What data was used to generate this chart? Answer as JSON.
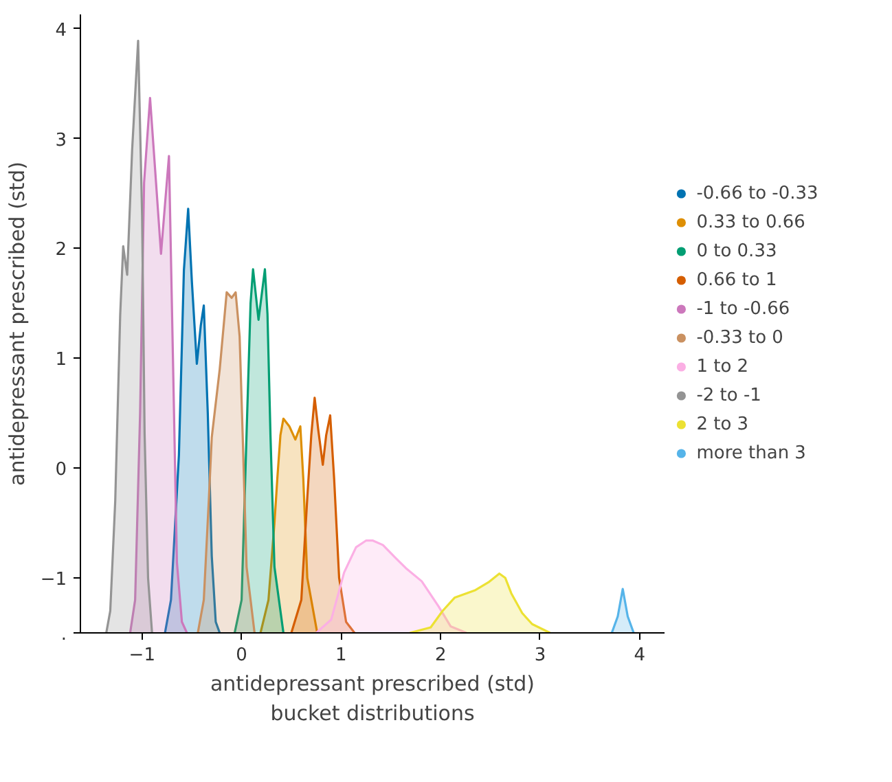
{
  "chart_data": {
    "type": "area",
    "xlabel": "antidepressant prescribed (std)\nbucket distributions",
    "ylabel": "antidepressant prescribed (std)",
    "xlim": [
      -1.62,
      4.25
    ],
    "ylim": [
      -1.5,
      4.13
    ],
    "xticks": [
      -1,
      0,
      1,
      2,
      3,
      4
    ],
    "yticks": [
      4,
      3,
      2,
      1,
      0,
      -1,
      {
        "value": -1.5,
        "label": "."
      }
    ],
    "grid": false,
    "legend": "right",
    "series": [
      {
        "name": "-0.66 to -0.33",
        "color": "#0173b2",
        "x": [
          -0.77,
          -0.71,
          -0.63,
          -0.58,
          -0.537,
          -0.5,
          -0.45,
          -0.41,
          -0.38,
          -0.34,
          -0.3,
          -0.26,
          -0.22
        ],
        "values": [
          -1.5,
          -1.2,
          0.12,
          1.8,
          2.36,
          1.7,
          0.95,
          1.3,
          1.48,
          0.5,
          -0.8,
          -1.4,
          -1.5
        ]
      },
      {
        "name": "0.33 to 0.66",
        "color": "#de8f05",
        "x": [
          0.19,
          0.27,
          0.33,
          0.36,
          0.39,
          0.42,
          0.48,
          0.54,
          0.59,
          0.62,
          0.66,
          0.76
        ],
        "values": [
          -1.5,
          -1.2,
          -0.5,
          -0.08,
          0.3,
          0.45,
          0.38,
          0.26,
          0.38,
          -0.1,
          -1.0,
          -1.5
        ]
      },
      {
        "name": "0 to 0.33",
        "color": "#029e73",
        "x": [
          -0.07,
          0.0,
          0.05,
          0.09,
          0.115,
          0.17,
          0.234,
          0.26,
          0.29,
          0.33,
          0.42
        ],
        "values": [
          -1.5,
          -1.2,
          0.32,
          1.5,
          1.81,
          1.35,
          1.81,
          1.4,
          0.3,
          -0.9,
          -1.5
        ]
      },
      {
        "name": "0.66 to 1",
        "color": "#d55e00",
        "x": [
          0.5,
          0.6,
          0.66,
          0.7,
          0.734,
          0.77,
          0.816,
          0.85,
          0.89,
          0.93,
          0.98,
          1.05,
          1.135
        ],
        "values": [
          -1.5,
          -1.2,
          -0.27,
          0.3,
          0.64,
          0.35,
          0.03,
          0.3,
          0.48,
          -0.1,
          -1.0,
          -1.4,
          -1.5
        ]
      },
      {
        "name": "-1 to -0.66",
        "color": "#cc78bc",
        "x": [
          -1.12,
          -1.07,
          -1.02,
          -0.98,
          -0.92,
          -0.86,
          -0.81,
          -0.77,
          -0.73,
          -0.69,
          -0.65,
          -0.6,
          -0.55
        ],
        "values": [
          -1.5,
          -1.2,
          0.5,
          2.6,
          3.37,
          2.6,
          1.95,
          2.4,
          2.84,
          1.0,
          -0.86,
          -1.4,
          -1.5
        ]
      },
      {
        "name": "-0.33 to 0",
        "color": "#ca9161",
        "x": [
          -0.44,
          -0.38,
          -0.33,
          -0.3,
          -0.22,
          -0.15,
          -0.1,
          -0.06,
          -0.02,
          0.01,
          0.05,
          0.13
        ],
        "values": [
          -1.5,
          -1.2,
          -0.3,
          0.28,
          0.9,
          1.6,
          1.55,
          1.6,
          1.2,
          0.32,
          -0.9,
          -1.5
        ]
      },
      {
        "name": "1 to 2",
        "color": "#fbafe4",
        "x": [
          0.75,
          0.9,
          1.03,
          1.15,
          1.25,
          1.32,
          1.42,
          1.55,
          1.65,
          1.81,
          1.98,
          2.1,
          2.26
        ],
        "values": [
          -1.5,
          -1.38,
          -0.95,
          -0.72,
          -0.66,
          -0.66,
          -0.7,
          -0.82,
          -0.91,
          -1.03,
          -1.26,
          -1.44,
          -1.5
        ]
      },
      {
        "name": "-2 to -1",
        "color": "#949494",
        "x": [
          -1.36,
          -1.32,
          -1.27,
          -1.22,
          -1.19,
          -1.15,
          -1.1,
          -1.04,
          -1.0,
          -0.975,
          -0.94,
          -0.9
        ],
        "values": [
          -1.5,
          -1.3,
          -0.3,
          1.4,
          2.02,
          1.76,
          2.9,
          3.89,
          2.3,
          0.32,
          -1.0,
          -1.5
        ]
      },
      {
        "name": "2 to 3",
        "color": "#ece133",
        "x": [
          1.69,
          1.9,
          2.02,
          2.14,
          2.35,
          2.48,
          2.59,
          2.65,
          2.71,
          2.82,
          2.92,
          3.1
        ],
        "values": [
          -1.5,
          -1.45,
          -1.3,
          -1.18,
          -1.11,
          -1.04,
          -0.96,
          -1.0,
          -1.14,
          -1.32,
          -1.42,
          -1.5
        ]
      },
      {
        "name": "more than 3",
        "color": "#56b4e9",
        "x": [
          3.72,
          3.78,
          3.83,
          3.88,
          3.94
        ],
        "values": [
          -1.5,
          -1.35,
          -1.1,
          -1.35,
          -1.5
        ]
      }
    ]
  }
}
